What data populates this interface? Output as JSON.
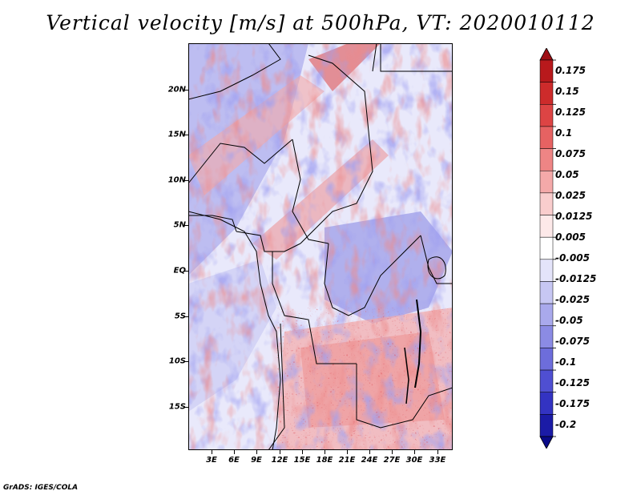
{
  "title": "Vertical velocity [m/s] at 500hPa, VT: 2020010112",
  "credit": "GrADS: IGES/COLA",
  "latitude_labels": [
    "20N",
    "15N",
    "10N",
    "5N",
    "EQ",
    "5S",
    "10S",
    "15S"
  ],
  "longitude_labels": [
    "3E",
    "6E",
    "9E",
    "12E",
    "15E",
    "18E",
    "21E",
    "24E",
    "27E",
    "30E",
    "33E"
  ],
  "colorbar": {
    "labels": [
      "0.175",
      "0.15",
      "0.125",
      "0.1",
      "0.075",
      "0.05",
      "0.025",
      "0.0125",
      "0.005",
      "-0.005",
      "-0.0125",
      "-0.025",
      "-0.05",
      "-0.075",
      "-0.1",
      "-0.125",
      "-0.175",
      "-0.2"
    ],
    "colors": [
      "#9e0e14",
      "#b8191c",
      "#cd2b2b",
      "#dd4444",
      "#e66262",
      "#ee8585",
      "#f4a9a9",
      "#f9cdcd",
      "#fde9e9",
      "#ffffff",
      "#e4e4fa",
      "#c7c7f3",
      "#a9a9ec",
      "#8b8be4",
      "#6d6ddb",
      "#4f4fd2",
      "#3333c2",
      "#1b1ba6",
      "#0a0a88"
    ]
  }
}
